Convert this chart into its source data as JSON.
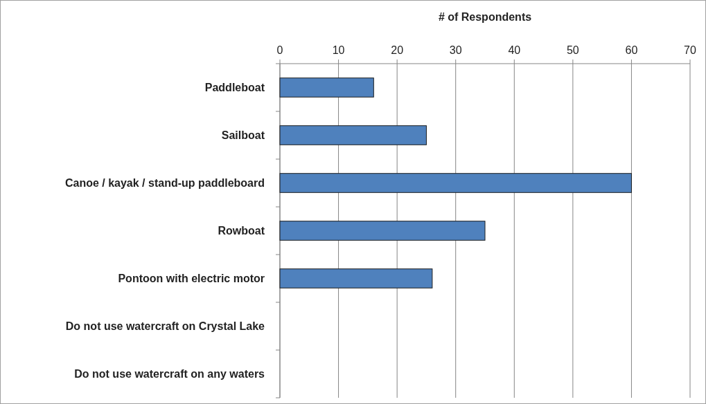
{
  "chart_data": {
    "type": "bar",
    "orientation": "horizontal",
    "xlabel": "# of Respondents",
    "categories": [
      "Paddleboat",
      "Sailboat",
      "Canoe / kayak / stand-up paddleboard",
      "Rowboat",
      "Pontoon with electric motor",
      "Do not use watercraft on Crystal Lake",
      "Do not use watercraft on any waters"
    ],
    "values": [
      16,
      25,
      60,
      35,
      26,
      0,
      0
    ],
    "color": "#4f81bd",
    "xlim": [
      0,
      70
    ],
    "xticks": [
      0,
      10,
      20,
      30,
      40,
      50,
      60,
      70
    ],
    "grid": "x"
  }
}
